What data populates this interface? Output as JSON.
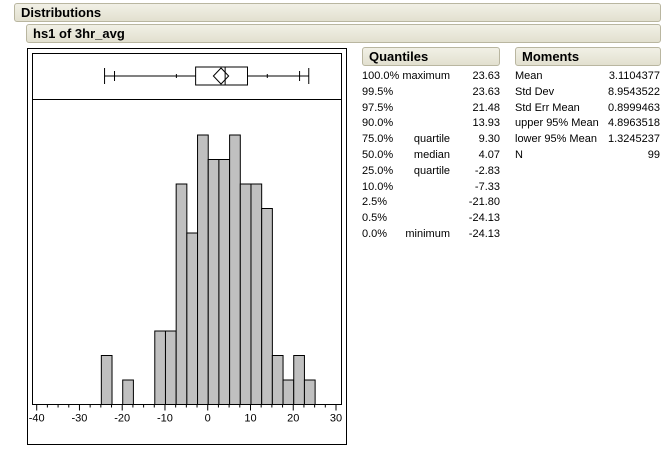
{
  "headers": {
    "distributions": "Distributions",
    "variable": "hs1 of 3hr_avg"
  },
  "quantiles": {
    "title": "Quantiles",
    "rows": [
      {
        "pct": "100.0%",
        "label": "maximum",
        "value": "23.63"
      },
      {
        "pct": "99.5%",
        "label": "",
        "value": "23.63"
      },
      {
        "pct": "97.5%",
        "label": "",
        "value": "21.48"
      },
      {
        "pct": "90.0%",
        "label": "",
        "value": "13.93"
      },
      {
        "pct": "75.0%",
        "label": "quartile",
        "value": "9.30"
      },
      {
        "pct": "50.0%",
        "label": "median",
        "value": "4.07"
      },
      {
        "pct": "25.0%",
        "label": "quartile",
        "value": "-2.83"
      },
      {
        "pct": "10.0%",
        "label": "",
        "value": "-7.33"
      },
      {
        "pct": "2.5%",
        "label": "",
        "value": "-21.80"
      },
      {
        "pct": "0.5%",
        "label": "",
        "value": "-24.13"
      },
      {
        "pct": "0.0%",
        "label": "minimum",
        "value": "-24.13"
      }
    ]
  },
  "moments": {
    "title": "Moments",
    "rows": [
      {
        "label": "Mean",
        "value": "3.1104377"
      },
      {
        "label": "Std Dev",
        "value": "8.9543522"
      },
      {
        "label": "Std Err Mean",
        "value": "0.8999463"
      },
      {
        "label": "upper 95% Mean",
        "value": "4.8963518"
      },
      {
        "label": "lower 95% Mean",
        "value": "1.3245237"
      },
      {
        "label": "N",
        "value": "99"
      }
    ]
  },
  "chart_data": {
    "type": "bar",
    "subtype": "histogram",
    "bin_width": 2.5,
    "bin_starts": [
      -25,
      -22.5,
      -20,
      -17.5,
      -15,
      -12.5,
      -10,
      -7.5,
      -5,
      -2.5,
      0,
      2.5,
      5,
      7.5,
      10,
      12.5,
      15,
      17.5,
      20,
      22.5
    ],
    "counts": [
      2,
      0,
      1,
      0,
      0,
      3,
      3,
      9,
      7,
      11,
      10,
      10,
      11,
      9,
      9,
      8,
      2,
      1,
      2,
      1
    ],
    "xlim": [
      -40,
      30
    ],
    "xticks": [
      "-40",
      "-30",
      "-20",
      "-10",
      "0",
      "10",
      "20",
      "30"
    ],
    "bar_color": "#c0c0c0",
    "boxplot": {
      "min": -24.13,
      "p10": -7.33,
      "q1": -2.83,
      "median": 4.07,
      "q3": 9.3,
      "p90": 13.93,
      "max": 23.63,
      "mean": 3.1104377,
      "ci_low": 1.3245237,
      "ci_high": 4.8963518,
      "p2_5": -21.8,
      "p97_5": 21.48
    }
  }
}
